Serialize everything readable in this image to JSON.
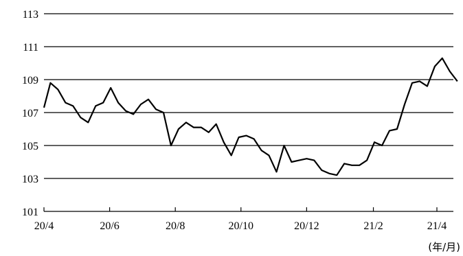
{
  "chart_data": {
    "type": "line",
    "title": "",
    "xlabel": "",
    "ylabel": "",
    "x_unit_label": "(年/月)",
    "ylim": [
      101,
      113
    ],
    "yticks": [
      101,
      103,
      105,
      107,
      109,
      111,
      113
    ],
    "xticks": [
      "20/4",
      "20/6",
      "20/8",
      "20/10",
      "20/12",
      "21/2",
      "21/4"
    ],
    "grid": true,
    "series": [
      {
        "name": "",
        "color": "#000000",
        "x": [
          "2020-04-01",
          "2020-04-07",
          "2020-04-14",
          "2020-04-21",
          "2020-04-28",
          "2020-05-05",
          "2020-05-12",
          "2020-05-19",
          "2020-05-26",
          "2020-06-02",
          "2020-06-09",
          "2020-06-16",
          "2020-06-23",
          "2020-06-30",
          "2020-07-07",
          "2020-07-14",
          "2020-07-21",
          "2020-07-28",
          "2020-08-04",
          "2020-08-11",
          "2020-08-18",
          "2020-08-25",
          "2020-09-01",
          "2020-09-08",
          "2020-09-15",
          "2020-09-22",
          "2020-09-29",
          "2020-10-06",
          "2020-10-13",
          "2020-10-20",
          "2020-10-27",
          "2020-11-03",
          "2020-11-10",
          "2020-11-17",
          "2020-11-24",
          "2020-12-01",
          "2020-12-08",
          "2020-12-15",
          "2020-12-22",
          "2020-12-29",
          "2021-01-05",
          "2021-01-12",
          "2021-01-19",
          "2021-01-26",
          "2021-02-02",
          "2021-02-09",
          "2021-02-16",
          "2021-02-23",
          "2021-03-02",
          "2021-03-09",
          "2021-03-16",
          "2021-03-23",
          "2021-03-30",
          "2021-04-06",
          "2021-04-13",
          "2021-04-20"
        ],
        "values": [
          107.3,
          108.8,
          108.4,
          107.6,
          107.4,
          106.7,
          106.4,
          107.4,
          107.6,
          108.5,
          107.6,
          107.1,
          106.9,
          107.5,
          107.8,
          107.2,
          107.0,
          105.0,
          106.0,
          106.4,
          106.1,
          106.1,
          105.8,
          106.3,
          105.2,
          104.4,
          105.5,
          105.6,
          105.4,
          104.7,
          104.4,
          103.4,
          105.0,
          104.0,
          104.1,
          104.2,
          104.1,
          103.5,
          103.3,
          103.2,
          103.9,
          103.8,
          103.8,
          104.1,
          105.2,
          105.0,
          105.9,
          106.0,
          107.5,
          108.8,
          108.9,
          108.6,
          109.8,
          110.3,
          109.5,
          108.9
        ]
      }
    ]
  }
}
